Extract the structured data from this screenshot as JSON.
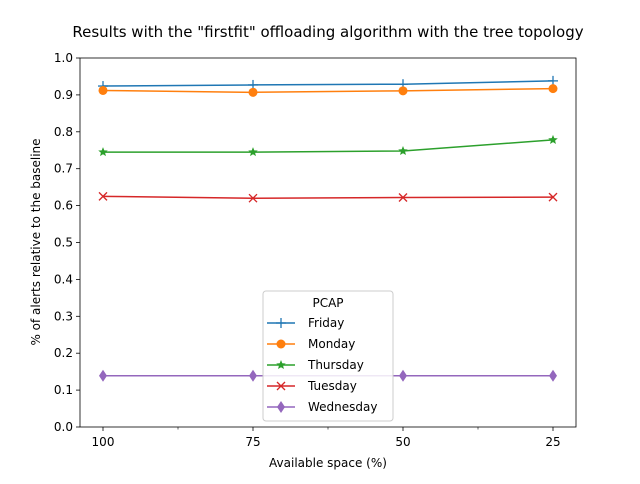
{
  "chart_data": {
    "type": "line",
    "title": "Results with the \"firstfit\" offloading algorithm with the tree topology",
    "xlabel": "Available space (%)",
    "ylabel": "% of alerts relative to the baseline",
    "categories": [
      "100",
      "75",
      "50",
      "25"
    ],
    "ylim": [
      0.0,
      1.0
    ],
    "yticks": [
      "0.0",
      "0.1",
      "0.2",
      "0.3",
      "0.4",
      "0.5",
      "0.6",
      "0.7",
      "0.8",
      "0.9",
      "1.0"
    ],
    "grid": false,
    "legend": {
      "title": "PCAP",
      "placement": "lower-center"
    },
    "series": [
      {
        "name": "Friday",
        "color": "#1f77b4",
        "marker": "plus",
        "values": [
          0.924,
          0.927,
          0.929,
          0.938
        ]
      },
      {
        "name": "Monday",
        "color": "#ff7f0e",
        "marker": "circle",
        "values": [
          0.912,
          0.907,
          0.911,
          0.917
        ]
      },
      {
        "name": "Thursday",
        "color": "#2ca02c",
        "marker": "star",
        "values": [
          0.745,
          0.745,
          0.748,
          0.778
        ]
      },
      {
        "name": "Tuesday",
        "color": "#d62728",
        "marker": "x",
        "values": [
          0.625,
          0.62,
          0.622,
          0.623
        ]
      },
      {
        "name": "Wednesday",
        "color": "#9467bd",
        "marker": "diamond",
        "values": [
          0.139,
          0.139,
          0.139,
          0.139
        ]
      }
    ]
  }
}
